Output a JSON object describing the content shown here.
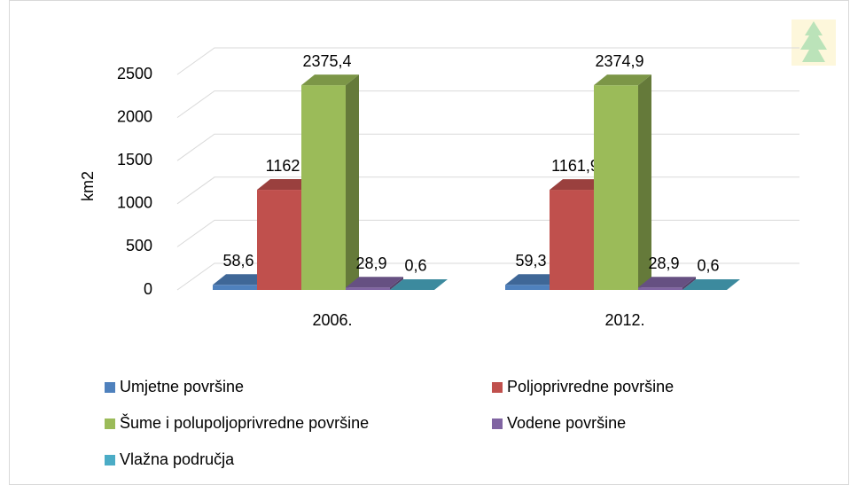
{
  "chart_data": {
    "type": "bar3d",
    "ylabel": "km2",
    "categories": [
      "2006.",
      "2012."
    ],
    "series": [
      {
        "name": "Umjetne površine",
        "color": "#4f81bd",
        "values": [
          58.6,
          59.3
        ],
        "value_labels": [
          "58,6",
          "59,3"
        ]
      },
      {
        "name": "Poljoprivredne površine",
        "color": "#c0504d",
        "values": [
          1162,
          1161.9
        ],
        "value_labels": [
          "1162",
          "1161,9"
        ]
      },
      {
        "name": "Šume i polupoljoprivredne površine",
        "color": "#9bbb59",
        "values": [
          2375.4,
          2374.9
        ],
        "value_labels": [
          "2375,4",
          "2374,9"
        ]
      },
      {
        "name": "Vodene površine",
        "color": "#8064a2",
        "values": [
          28.9,
          28.9
        ],
        "value_labels": [
          "28,9",
          "28,9"
        ]
      },
      {
        "name": "Vlažna područja",
        "color": "#4bacc6",
        "values": [
          0.6,
          0.6
        ],
        "value_labels": [
          "0,6",
          "0,6"
        ]
      }
    ],
    "ylim": [
      0,
      2500
    ],
    "yticks": [
      0,
      500,
      1000,
      1500,
      2000,
      2500
    ],
    "grid": true,
    "legend": "bottom"
  }
}
